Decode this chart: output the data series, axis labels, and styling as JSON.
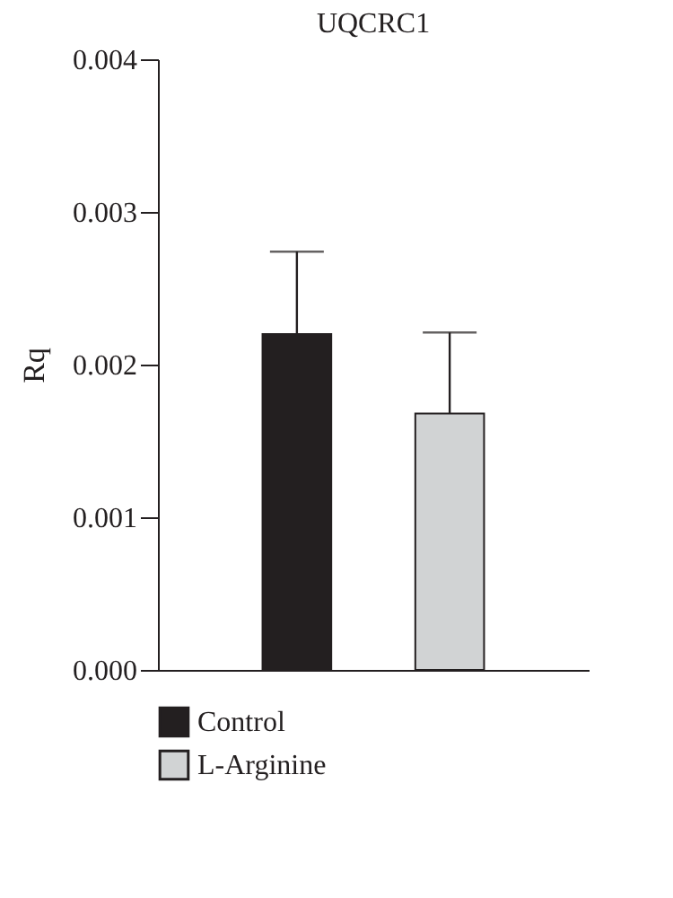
{
  "chart_data": {
    "type": "bar",
    "title": "UQCRC1",
    "ylabel": "Rq",
    "categories": [
      null
    ],
    "series": [
      {
        "name": "Control",
        "color": "#231f20",
        "values": [
          0.0022
        ],
        "errors": [
          [
            0.0022,
            0.00274
          ]
        ]
      },
      {
        "name": "L-Arginine",
        "color": "#d1d3d4",
        "values": [
          0.00168
        ],
        "errors": [
          [
            0.00168,
            0.00221
          ]
        ]
      }
    ],
    "ylim": [
      0,
      0.004
    ],
    "yticks": [
      {
        "value": 0,
        "label": "0.000"
      },
      {
        "value": 0.001,
        "label": "0.001"
      },
      {
        "value": 0.002,
        "label": "0.002"
      },
      {
        "value": 0.003,
        "label": "0.003"
      },
      {
        "value": 0.004,
        "label": "0.004"
      }
    ],
    "tick_labels": "y",
    "legend": "bottom left",
    "grid": false
  }
}
